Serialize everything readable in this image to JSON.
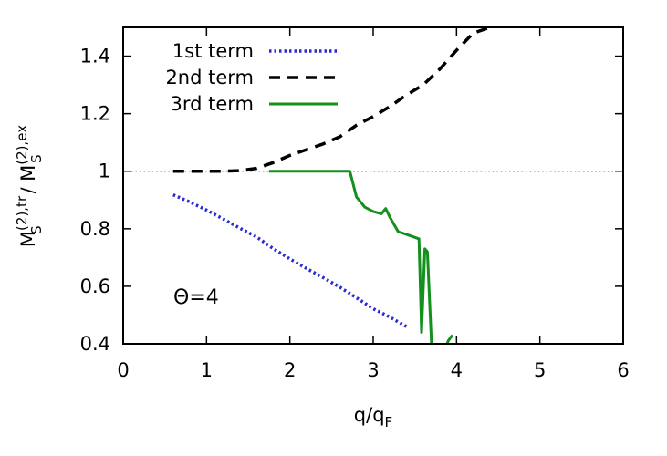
{
  "chart_data": {
    "type": "line",
    "xlabel": "q/q",
    "xlabel_sub": "F",
    "ylabel_parts": {
      "left_base": "M",
      "left_sup": "(2),tr",
      "left_sub": "S",
      "sep": " / ",
      "right_base": "M",
      "right_sup": "(2),ex",
      "right_sub": "S"
    },
    "xlim": [
      0,
      6
    ],
    "ylim": [
      0.4,
      1.5
    ],
    "x_ticks": [
      0,
      1,
      2,
      3,
      4,
      5,
      6
    ],
    "x_tick_labels": [
      "0",
      "1",
      "2",
      "3",
      "4",
      "5",
      "6"
    ],
    "y_ticks": [
      0.4,
      0.6,
      0.8,
      1.0,
      1.2,
      1.4
    ],
    "y_tick_labels": [
      "0.4",
      "0.6",
      "0.8",
      "1",
      "1.2",
      "1.4"
    ],
    "grid": false,
    "legend_position": "top-left",
    "annotation": "Θ=4",
    "reference_line": {
      "y": 1.0,
      "style": "dotted",
      "color": "#777777"
    },
    "series": [
      {
        "name": "1st term",
        "color": "#2a2ad4",
        "style": "dotted",
        "x": [
          0.6,
          0.8,
          1.0,
          1.2,
          1.4,
          1.6,
          1.8,
          2.0,
          2.2,
          2.4,
          2.6,
          2.8,
          3.0,
          3.2,
          3.4
        ],
        "y": [
          0.918,
          0.893,
          0.865,
          0.834,
          0.802,
          0.772,
          0.731,
          0.695,
          0.662,
          0.63,
          0.597,
          0.56,
          0.522,
          0.493,
          0.46
        ]
      },
      {
        "name": "2nd term",
        "color": "#000000",
        "style": "dashed",
        "x": [
          0.6,
          0.8,
          1.0,
          1.2,
          1.4,
          1.6,
          1.8,
          2.0,
          2.2,
          2.4,
          2.6,
          2.8,
          3.0,
          3.2,
          3.4,
          3.6,
          3.8,
          4.0,
          4.2,
          4.4
        ],
        "y": [
          1.0,
          1.0,
          1.0,
          1.0,
          1.002,
          1.01,
          1.03,
          1.055,
          1.075,
          1.095,
          1.12,
          1.16,
          1.19,
          1.225,
          1.265,
          1.3,
          1.355,
          1.42,
          1.48,
          1.5
        ]
      },
      {
        "name": "3rd term",
        "color": "#14901e",
        "style": "solid",
        "x": [
          1.75,
          2.0,
          2.3,
          2.6,
          2.72,
          2.8,
          2.9,
          3.0,
          3.1,
          3.15,
          3.2,
          3.3,
          3.4,
          3.5,
          3.55,
          3.58,
          3.62,
          3.65,
          3.7,
          3.75,
          3.8,
          3.85,
          3.9,
          3.95
        ],
        "y": [
          1.0,
          1.0,
          1.0,
          1.0,
          1.0,
          0.91,
          0.875,
          0.86,
          0.852,
          0.87,
          0.84,
          0.79,
          0.78,
          0.77,
          0.765,
          0.44,
          0.73,
          0.72,
          0.4,
          0.29,
          0.33,
          0.37,
          0.41,
          0.43
        ]
      }
    ]
  }
}
